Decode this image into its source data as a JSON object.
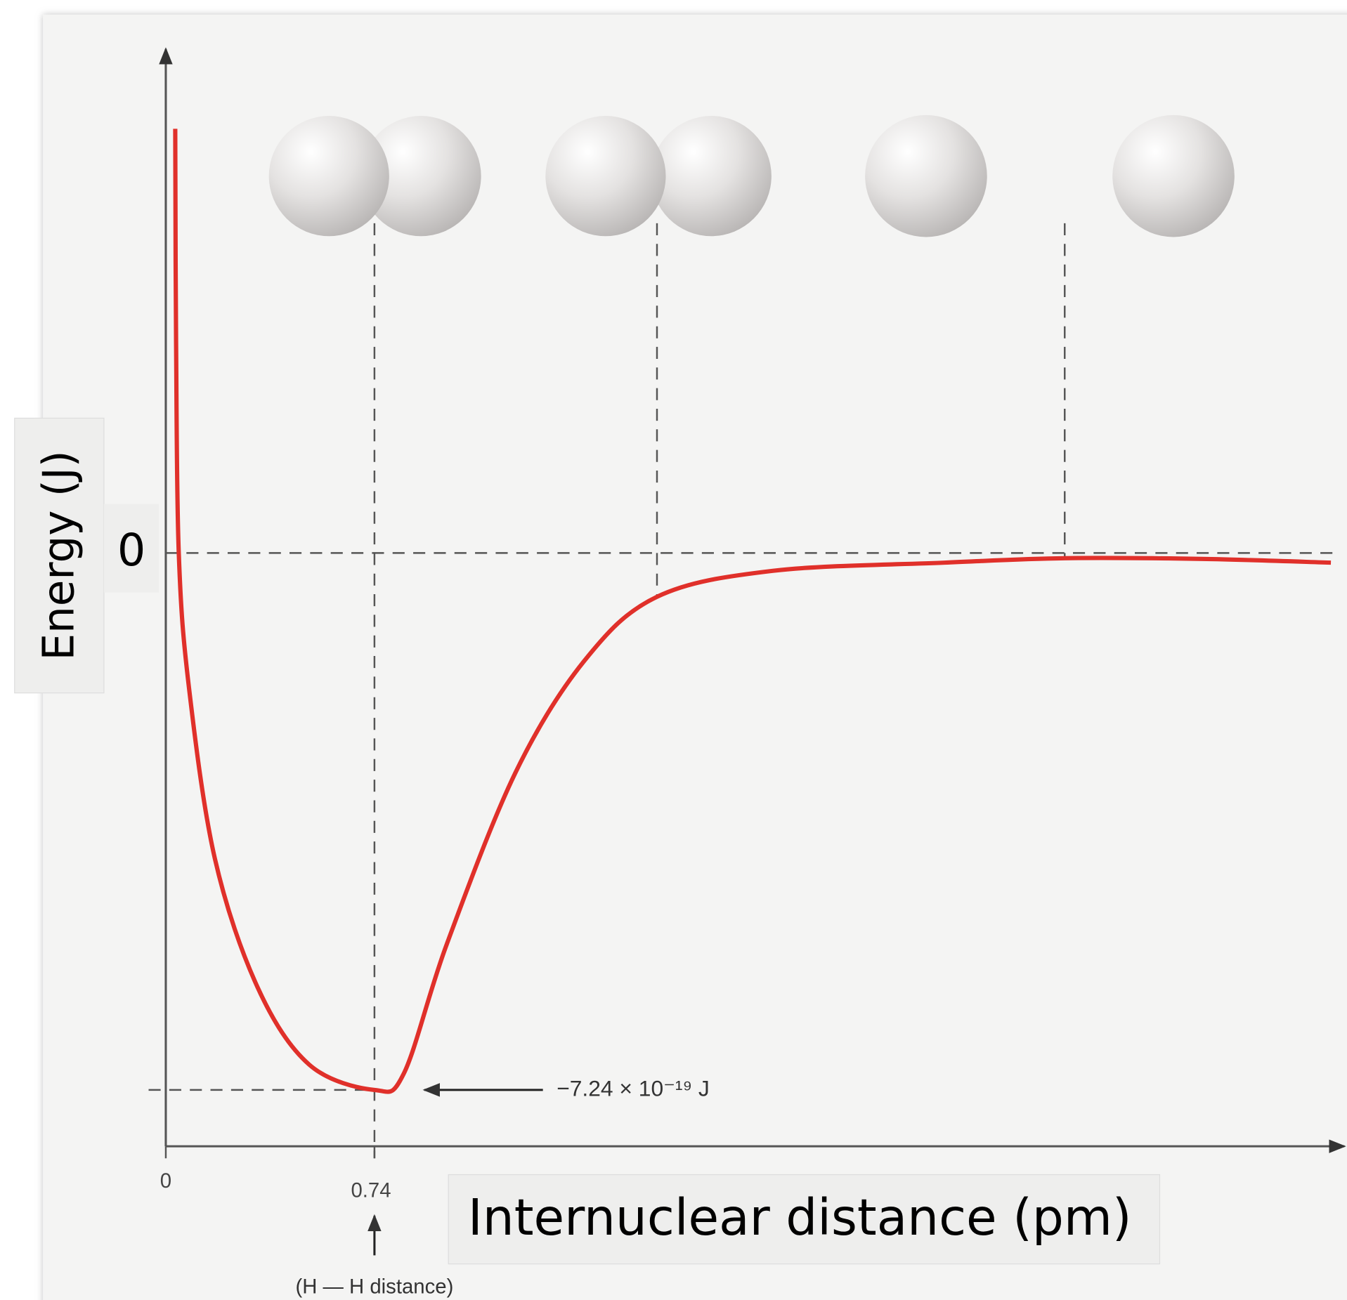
{
  "chart_data": {
    "type": "line",
    "x_label": "Internuclear distance (pm)",
    "y_label": "Energy (J)",
    "x": [
      0.0335,
      0.0365,
      0.046,
      0.082,
      0.174,
      0.326,
      0.509,
      0.74,
      0.844,
      0.996,
      1.239,
      1.483,
      1.742,
      2.153,
      2.762,
      3.188,
      3.675,
      4.132
    ],
    "values": [
      5.72e-19,
      2.83e-19,
      0,
      -1.81e-19,
      -4.12e-19,
      -5.86e-19,
      -6.9e-19,
      -7.24e-19,
      -7.02e-19,
      -5.28e-19,
      -2.97e-19,
      -1.46e-19,
      -5.9e-20,
      -2.4e-20,
      -1.3e-20,
      -7e-21,
      -8e-21,
      -1.3e-20
    ],
    "color": "#e0302a",
    "xlim": [
      0,
      4.18
    ],
    "ylim": [
      -8e-19,
      6.82e-19
    ],
    "xticks": [
      0,
      0.74
    ],
    "yticks": [
      0
    ],
    "annotations": [
      "−7.24 × 10⁻¹⁹ J",
      "(H — H distance)"
    ]
  }
}
